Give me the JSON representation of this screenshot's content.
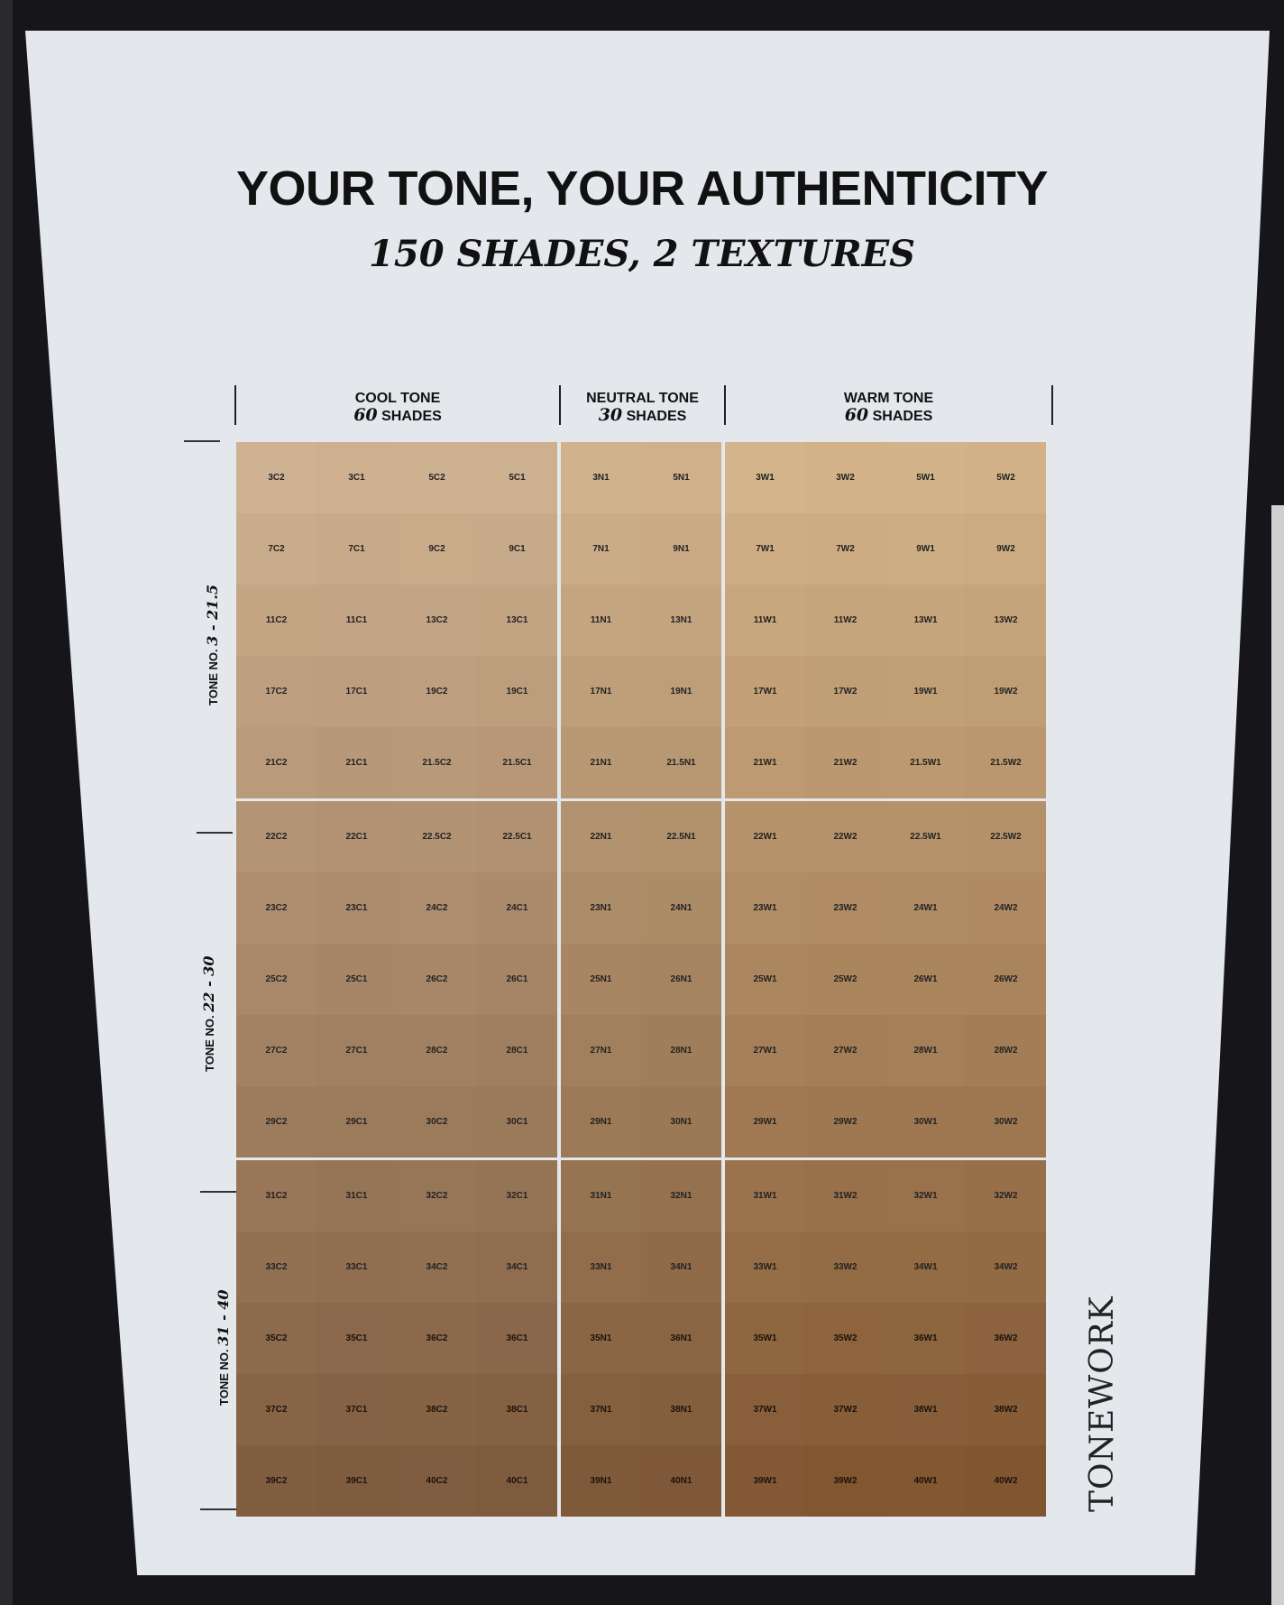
{
  "poster": {
    "title": "YOUR TONE, YOUR AUTHENTICITY",
    "subtitle": "150 SHADES, 2 TEXTURES",
    "brand": "TONEWORK",
    "headers": [
      {
        "name": "COOL TONE",
        "count": "60",
        "unit": "SHADES"
      },
      {
        "name": "NEUTRAL TONE",
        "count": "30",
        "unit": "SHADES"
      },
      {
        "name": "WARM TONE",
        "count": "60",
        "unit": "SHADES"
      }
    ],
    "side_labels": [
      {
        "prefix": "TONE NO.",
        "range": "3 - 21.5"
      },
      {
        "prefix": "TONE NO.",
        "range": "22 - 30"
      },
      {
        "prefix": "TONE NO.",
        "range": "31 - 40"
      }
    ]
  },
  "colors": {
    "cool": {
      "top": "#cfb291",
      "bottom": "#7e5a3d"
    },
    "neutral": {
      "top": "#d0b28c",
      "bottom": "#7c5636"
    },
    "warm": {
      "top": "#d4b48a",
      "bottom": "#7f5530"
    }
  },
  "grid": {
    "cool": [
      [
        "3C2",
        "3C1",
        "5C2",
        "5C1"
      ],
      [
        "7C2",
        "7C1",
        "9C2",
        "9C1"
      ],
      [
        "11C2",
        "11C1",
        "13C2",
        "13C1"
      ],
      [
        "17C2",
        "17C1",
        "19C2",
        "19C1"
      ],
      [
        "21C2",
        "21C1",
        "21.5C2",
        "21.5C1"
      ],
      [
        "22C2",
        "22C1",
        "22.5C2",
        "22.5C1"
      ],
      [
        "23C2",
        "23C1",
        "24C2",
        "24C1"
      ],
      [
        "25C2",
        "25C1",
        "26C2",
        "26C1"
      ],
      [
        "27C2",
        "27C1",
        "28C2",
        "28C1"
      ],
      [
        "29C2",
        "29C1",
        "30C2",
        "30C1"
      ],
      [
        "31C2",
        "31C1",
        "32C2",
        "32C1"
      ],
      [
        "33C2",
        "33C1",
        "34C2",
        "34C1"
      ],
      [
        "35C2",
        "35C1",
        "36C2",
        "36C1"
      ],
      [
        "37C2",
        "37C1",
        "38C2",
        "38C1"
      ],
      [
        "39C2",
        "39C1",
        "40C2",
        "40C1"
      ]
    ],
    "neutral": [
      [
        "3N1",
        "5N1"
      ],
      [
        "7N1",
        "9N1"
      ],
      [
        "11N1",
        "13N1"
      ],
      [
        "17N1",
        "19N1"
      ],
      [
        "21N1",
        "21.5N1"
      ],
      [
        "22N1",
        "22.5N1"
      ],
      [
        "23N1",
        "24N1"
      ],
      [
        "25N1",
        "26N1"
      ],
      [
        "27N1",
        "28N1"
      ],
      [
        "29N1",
        "30N1"
      ],
      [
        "31N1",
        "32N1"
      ],
      [
        "33N1",
        "34N1"
      ],
      [
        "35N1",
        "36N1"
      ],
      [
        "37N1",
        "38N1"
      ],
      [
        "39N1",
        "40N1"
      ]
    ],
    "warm": [
      [
        "3W1",
        "3W2",
        "5W1",
        "5W2"
      ],
      [
        "7W1",
        "7W2",
        "9W1",
        "9W2"
      ],
      [
        "11W1",
        "11W2",
        "13W1",
        "13W2"
      ],
      [
        "17W1",
        "17W2",
        "19W1",
        "19W2"
      ],
      [
        "21W1",
        "21W2",
        "21.5W1",
        "21.5W2"
      ],
      [
        "22W1",
        "22W2",
        "22.5W1",
        "22.5W2"
      ],
      [
        "23W1",
        "23W2",
        "24W1",
        "24W2"
      ],
      [
        "25W1",
        "25W2",
        "26W1",
        "26W2"
      ],
      [
        "27W1",
        "27W2",
        "28W1",
        "28W2"
      ],
      [
        "29W1",
        "29W2",
        "30W1",
        "30W2"
      ],
      [
        "31W1",
        "31W2",
        "32W1",
        "32W2"
      ],
      [
        "33W1",
        "33W2",
        "34W1",
        "34W2"
      ],
      [
        "35W1",
        "35W2",
        "36W1",
        "36W2"
      ],
      [
        "37W1",
        "37W2",
        "38W1",
        "38W2"
      ],
      [
        "39W1",
        "39W2",
        "40W1",
        "40W2"
      ]
    ]
  }
}
